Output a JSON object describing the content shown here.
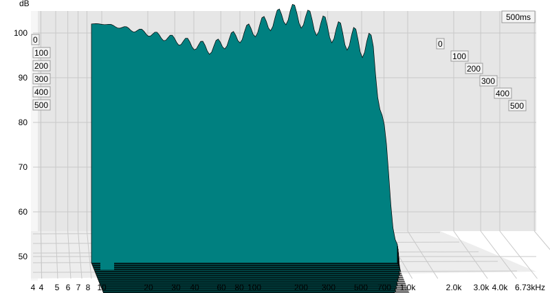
{
  "chart_data": {
    "type": "waterfall",
    "window_label": "500ms",
    "ylabel": "dB",
    "y_ticks": [
      "100",
      "90",
      "80",
      "70",
      "60",
      "50"
    ],
    "ylim": [
      47,
      103
    ],
    "x_scale": "log",
    "x_ticks": [
      "4",
      "4",
      "5",
      "6",
      "7",
      "8",
      "10",
      "20",
      "30",
      "40",
      "60",
      "80",
      "100",
      "200",
      "300",
      "500",
      "700",
      "1.0k",
      "2.0k",
      "3.0k",
      "4.0k",
      "6.73kHz"
    ],
    "x_tick_values": [
      4,
      4,
      5,
      6,
      7,
      8,
      10,
      20,
      30,
      40,
      60,
      80,
      100,
      200,
      300,
      500,
      700,
      1000,
      2000,
      3000,
      4000,
      6730
    ],
    "time_labels_left": [
      "0",
      "100",
      "200",
      "300",
      "400",
      "500"
    ],
    "time_labels_right": [
      "0",
      "100",
      "200",
      "300",
      "400",
      "500"
    ],
    "time_ms": [
      0,
      100,
      200,
      300,
      400,
      500
    ],
    "frequency_range_hz": [
      10,
      1000
    ],
    "front_slice_peaks": [
      {
        "x": 12,
        "y": 100.5
      },
      {
        "x": 20,
        "y": 99
      },
      {
        "x": 60,
        "y": 95
      },
      {
        "x": 200,
        "y": 103
      },
      {
        "x": 700,
        "y": 95
      },
      {
        "x": 1000,
        "y": 50
      }
    ],
    "grid": true,
    "colors": {
      "surface": "#008080",
      "surface_dark": "#003838",
      "edge": "#000000",
      "floor": "#e8e8e8",
      "wall": "#e6e6e6"
    }
  }
}
